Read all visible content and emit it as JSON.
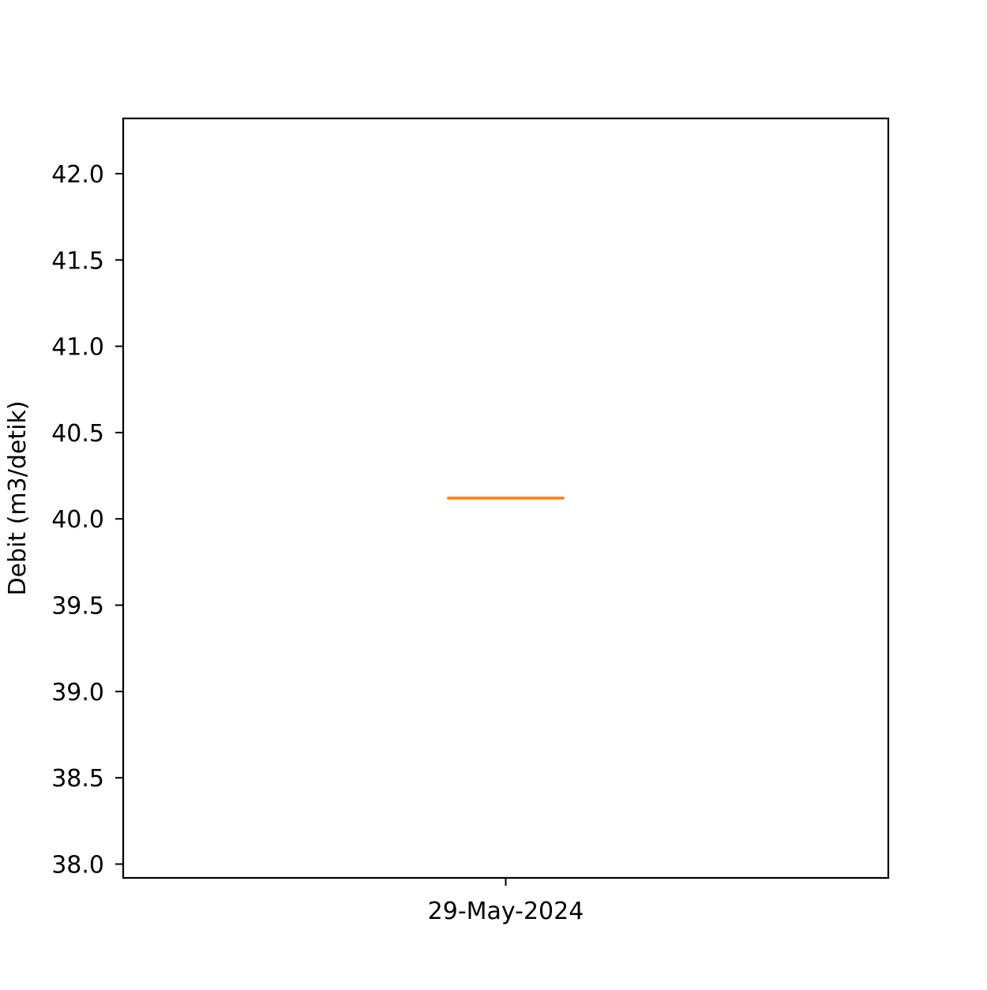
{
  "chart_data": {
    "type": "boxplot",
    "title": "",
    "xlabel": "",
    "ylabel": "Debit (m3/detik)",
    "categories": [
      "29-May-2024"
    ],
    "series": [
      {
        "name": "Debit",
        "boxes": [
          {
            "category": "29-May-2024",
            "min": 40.12,
            "q1": 40.12,
            "median": 40.12,
            "q3": 40.12,
            "max": 40.12
          }
        ]
      }
    ],
    "ylim": [
      37.92,
      42.32
    ],
    "yticks": [
      38.0,
      38.5,
      39.0,
      39.5,
      40.0,
      40.5,
      41.0,
      41.5,
      42.0
    ],
    "ytick_labels": [
      "38.0",
      "38.5",
      "39.0",
      "39.5",
      "40.0",
      "40.5",
      "41.0",
      "41.5",
      "42.0"
    ],
    "grid": false,
    "colors": {
      "box": "#000000",
      "median": "#ff7f0e",
      "axes": "#000000"
    }
  }
}
